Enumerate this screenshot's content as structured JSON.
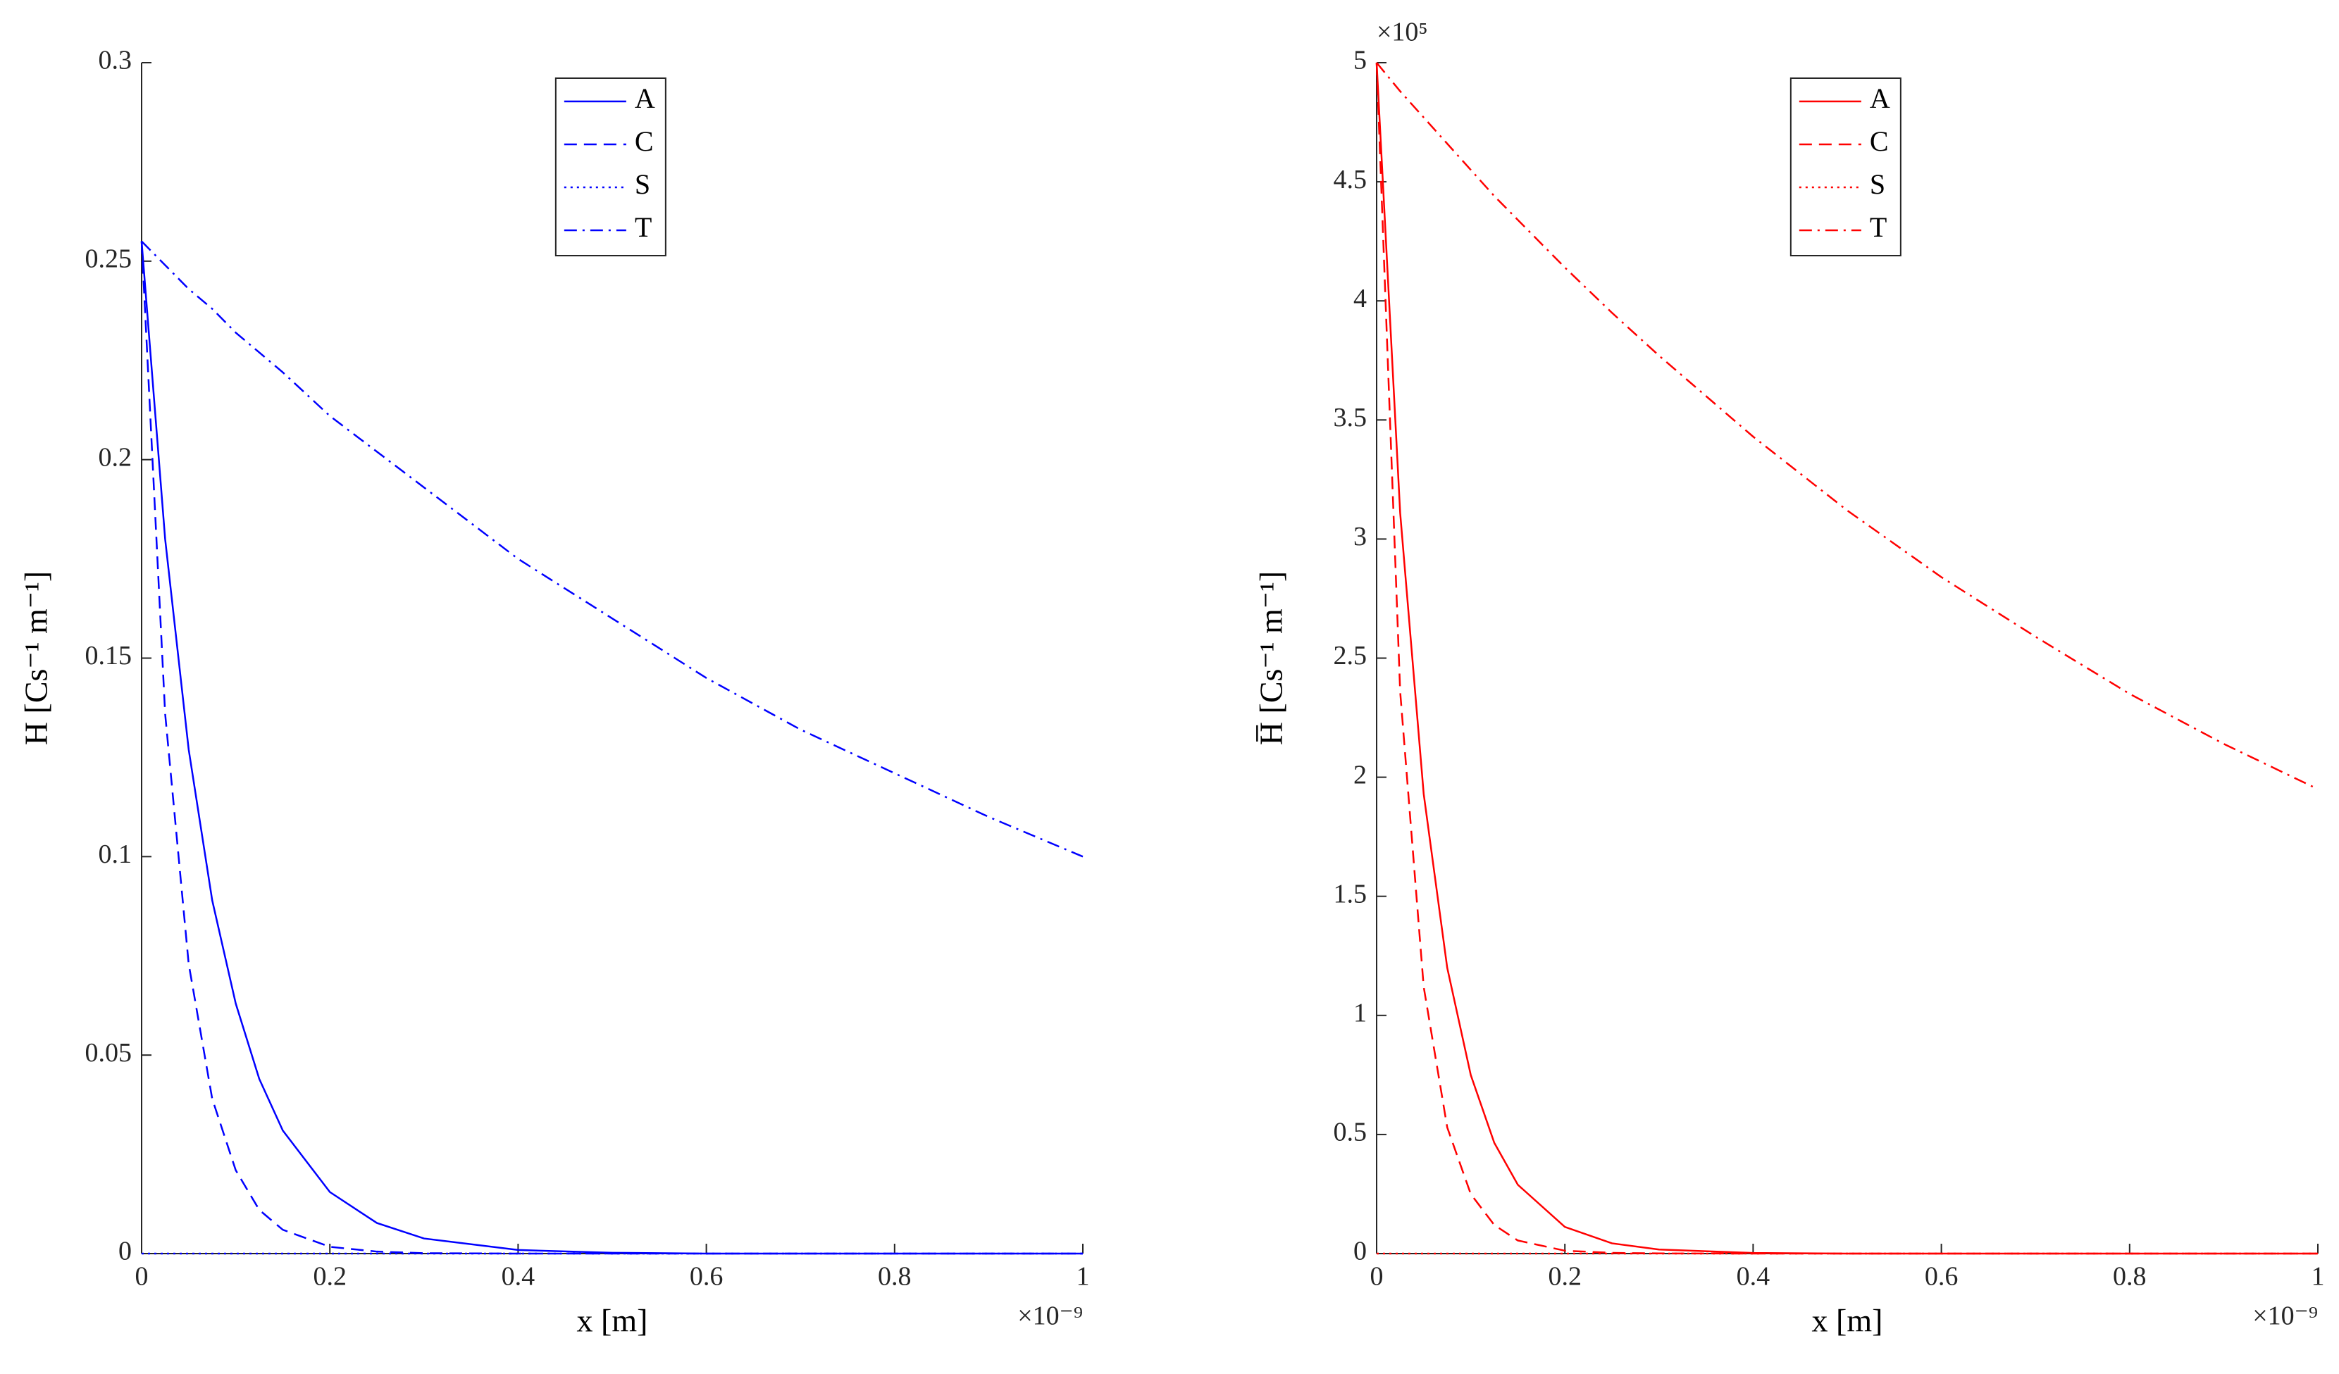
{
  "chart_data": [
    {
      "type": "line",
      "xlabel": "x [m]",
      "ylabel": "H [Cs⁻¹ m⁻¹]",
      "x_exponent_label": "×10⁻⁹",
      "x": [
        0,
        0.025,
        0.05,
        0.075,
        0.1,
        0.125,
        0.15,
        0.2,
        0.25,
        0.3,
        0.4,
        0.5,
        0.6,
        0.7,
        0.8,
        0.9,
        1
      ],
      "xlim": [
        0,
        1
      ],
      "xticks": [
        0,
        0.2,
        0.4,
        0.6,
        0.8,
        1
      ],
      "ylim": [
        0,
        0.3
      ],
      "yticks": [
        0,
        0.05,
        0.1,
        0.15,
        0.2,
        0.25,
        0.3
      ],
      "legend": "north",
      "series": [
        {
          "name": "A",
          "color": "#0000ff",
          "linestyle": "solid",
          "values": [
            0.255,
            0.18,
            0.127,
            0.089,
            0.063,
            0.044,
            0.031,
            0.0155,
            0.0077,
            0.0038,
            0.0009,
            0.0002,
            0,
            0,
            0,
            0,
            0
          ]
        },
        {
          "name": "C",
          "color": "#0000ff",
          "linestyle": "dashed",
          "values": [
            0.255,
            0.136,
            0.073,
            0.039,
            0.021,
            0.011,
            0.006,
            0.0017,
            0.0005,
            0.0001,
            0,
            0,
            0,
            0,
            0,
            0,
            0
          ]
        },
        {
          "name": "S",
          "color": "#0000ff",
          "linestyle": "dotted",
          "values": [
            0,
            0,
            0,
            0,
            0,
            0,
            0,
            0,
            0,
            0,
            0,
            0,
            0,
            0,
            0,
            0,
            0
          ]
        },
        {
          "name": "T",
          "color": "#0000ff",
          "linestyle": "dashdot",
          "values": [
            0.255,
            0.249,
            0.243,
            0.238,
            0.232,
            0.227,
            0.222,
            0.211,
            0.202,
            0.193,
            0.175,
            0.16,
            0.145,
            0.132,
            0.121,
            0.11,
            0.1
          ]
        }
      ]
    },
    {
      "type": "line",
      "xlabel": "x [m]",
      "ylabel": "H̅ [Cs⁻¹ m⁻¹]",
      "x_exponent_label": "×10⁻⁹",
      "y_exponent_label": "×10⁵",
      "x": [
        0,
        0.025,
        0.05,
        0.075,
        0.1,
        0.125,
        0.15,
        0.2,
        0.25,
        0.3,
        0.4,
        0.5,
        0.6,
        0.7,
        0.8,
        0.9,
        1
      ],
      "xlim": [
        0,
        1
      ],
      "xticks": [
        0,
        0.2,
        0.4,
        0.6,
        0.8,
        1
      ],
      "ylim": [
        0,
        5
      ],
      "yticks": [
        0,
        0.5,
        1,
        1.5,
        2,
        2.5,
        3,
        3.5,
        4,
        4.5,
        5
      ],
      "legend": "north",
      "series": [
        {
          "name": "A",
          "color": "#ff0000",
          "linestyle": "solid",
          "values": [
            5,
            3.11,
            1.93,
            1.2,
            0.75,
            0.465,
            0.289,
            0.112,
            0.043,
            0.017,
            0.0025,
            0,
            0,
            0,
            0,
            0,
            0
          ]
        },
        {
          "name": "C",
          "color": "#ff0000",
          "linestyle": "dashed",
          "values": [
            5,
            2.36,
            1.12,
            0.53,
            0.25,
            0.12,
            0.055,
            0.012,
            0.003,
            0.0006,
            0,
            0,
            0,
            0,
            0,
            0,
            0
          ]
        },
        {
          "name": "S",
          "color": "#ff0000",
          "linestyle": "dotted",
          "values": [
            0,
            0,
            0,
            0,
            0,
            0,
            0,
            0,
            0,
            0,
            0,
            0,
            0,
            0,
            0,
            0,
            0
          ]
        },
        {
          "name": "T",
          "color": "#ff0000",
          "linestyle": "dashdot",
          "values": [
            5,
            4.88,
            4.77,
            4.66,
            4.55,
            4.44,
            4.34,
            4.14,
            3.95,
            3.77,
            3.43,
            3.12,
            2.84,
            2.59,
            2.35,
            2.14,
            1.95
          ]
        }
      ]
    }
  ]
}
